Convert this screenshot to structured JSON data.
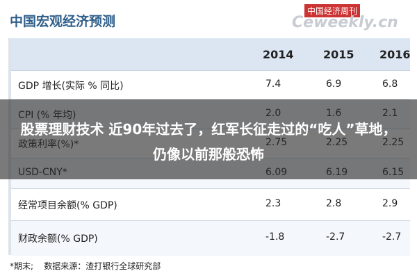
{
  "title": "中国宏观经济预测",
  "watermark": {
    "brand": "中国经济周刊",
    "site": "Ceweekly.cn"
  },
  "table": {
    "header": [
      "2014",
      "2015",
      "2016"
    ],
    "rows": [
      [
        "GDP 增长(实际 % 同比)",
        "7.4",
        "6.9",
        "6.8"
      ],
      [
        "CPI (% 年均)",
        "2.0",
        "1.6",
        "2.1"
      ],
      [
        "政策利率(%)*",
        "2.75",
        "2.25",
        "2.25"
      ],
      [
        "USD-CNY*",
        "6.09",
        "6.19",
        "6.15"
      ],
      [
        "经常项目余额(% GDP)",
        "2.3",
        "2.8",
        "2.9"
      ],
      [
        "财政余额(% GDP)",
        "-1.8",
        "-2.7",
        "-2.7"
      ]
    ]
  },
  "footnote": "*期末;    数据来源：渣打银行全球研究部",
  "overlay": "股票理财技术 近90年过去了，红军长征走过的“吃人”草地，仍像以前那般恐怖"
}
